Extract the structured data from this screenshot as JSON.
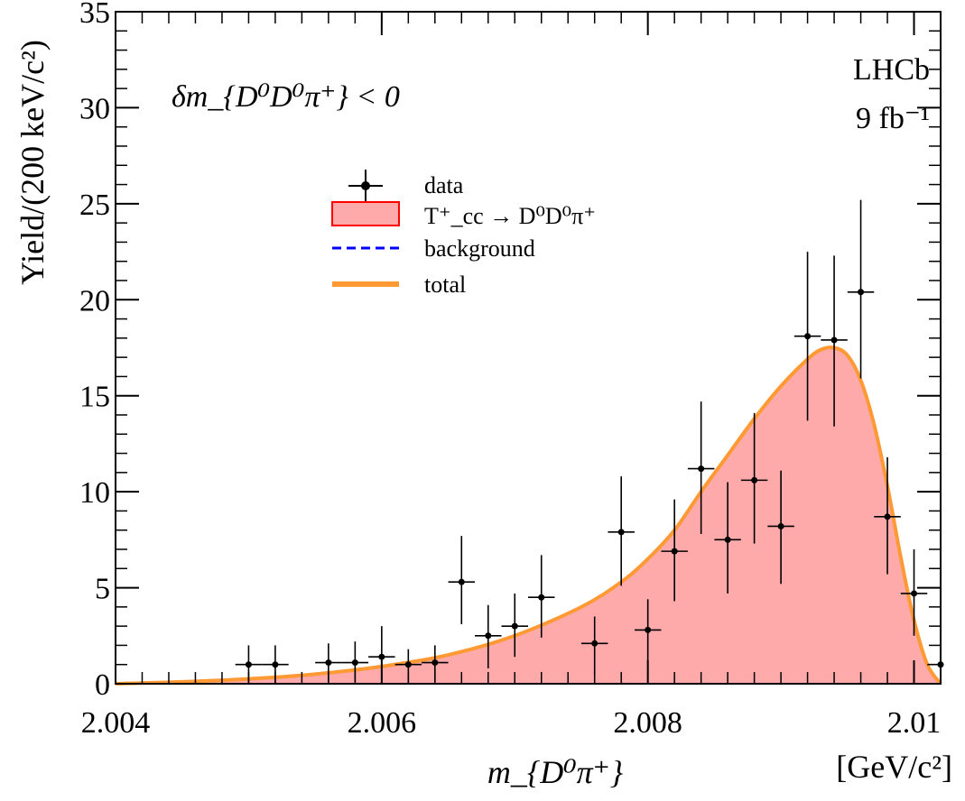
{
  "chart_data": {
    "type": "scatter",
    "experiment": "LHCb",
    "luminosity": "9 fb⁻¹",
    "selection": "δm_{D⁰D⁰π⁺} < 0",
    "xlabel": "m_{D⁰π⁺}",
    "xunit": "[GeV/c²]",
    "ylabel": "Yield/(200 keV/c²)",
    "xlim": [
      2.004,
      2.0102
    ],
    "ylim": [
      0,
      35
    ],
    "xticks": [
      {
        "value": 2.004,
        "label": "2.004"
      },
      {
        "value": 2.006,
        "label": "2.006"
      },
      {
        "value": 2.008,
        "label": "2.008"
      },
      {
        "value": 2.01,
        "label": "2.01"
      }
    ],
    "yticks": [
      {
        "value": 0,
        "label": "0"
      },
      {
        "value": 5,
        "label": "5"
      },
      {
        "value": 10,
        "label": "10"
      },
      {
        "value": 15,
        "label": "15"
      },
      {
        "value": 20,
        "label": "20"
      },
      {
        "value": 25,
        "label": "25"
      },
      {
        "value": 30,
        "label": "30"
      },
      {
        "value": 35,
        "label": "35"
      }
    ],
    "bin_half_width": 0.0001,
    "legend": [
      {
        "key": "data",
        "label": "data"
      },
      {
        "key": "signal",
        "label": "T⁺_cc → D⁰D⁰π⁺"
      },
      {
        "key": "background",
        "label": "background"
      },
      {
        "key": "total",
        "label": "total"
      }
    ],
    "colors": {
      "signal_fill": "#ffaaaa",
      "signal_edge": "#ff0000",
      "background": "#0000ff",
      "total": "#ff9933",
      "data": "#000000"
    },
    "data": [
      {
        "x": 2.005,
        "y": 1.0,
        "yerr_low": 1.0,
        "yerr_high": 1.0
      },
      {
        "x": 2.0052,
        "y": 1.0,
        "yerr_low": 1.0,
        "yerr_high": 1.0
      },
      {
        "x": 2.0056,
        "y": 1.1,
        "yerr_low": 1.0,
        "yerr_high": 1.0
      },
      {
        "x": 2.0058,
        "y": 1.1,
        "yerr_low": 1.0,
        "yerr_high": 1.1
      },
      {
        "x": 2.006,
        "y": 1.4,
        "yerr_low": 1.2,
        "yerr_high": 1.6
      },
      {
        "x": 2.0062,
        "y": 1.0,
        "yerr_low": 1.0,
        "yerr_high": 0.8
      },
      {
        "x": 2.0064,
        "y": 1.1,
        "yerr_low": 1.0,
        "yerr_high": 0.9
      },
      {
        "x": 2.0066,
        "y": 5.3,
        "yerr_low": 2.2,
        "yerr_high": 2.4
      },
      {
        "x": 2.0068,
        "y": 2.5,
        "yerr_low": 1.7,
        "yerr_high": 1.6
      },
      {
        "x": 2.007,
        "y": 3.0,
        "yerr_low": 1.6,
        "yerr_high": 1.7
      },
      {
        "x": 2.0072,
        "y": 4.5,
        "yerr_low": 2.1,
        "yerr_high": 2.2
      },
      {
        "x": 2.0076,
        "y": 2.1,
        "yerr_low": 1.6,
        "yerr_high": 1.4
      },
      {
        "x": 2.0078,
        "y": 7.9,
        "yerr_low": 2.8,
        "yerr_high": 2.9
      },
      {
        "x": 2.008,
        "y": 2.8,
        "yerr_low": 1.7,
        "yerr_high": 1.6
      },
      {
        "x": 2.0082,
        "y": 6.9,
        "yerr_low": 2.6,
        "yerr_high": 2.7
      },
      {
        "x": 2.0084,
        "y": 11.2,
        "yerr_low": 3.4,
        "yerr_high": 3.5
      },
      {
        "x": 2.0086,
        "y": 7.5,
        "yerr_low": 2.8,
        "yerr_high": 3.0
      },
      {
        "x": 2.0088,
        "y": 10.6,
        "yerr_low": 3.3,
        "yerr_high": 3.5
      },
      {
        "x": 2.009,
        "y": 8.2,
        "yerr_low": 3.0,
        "yerr_high": 2.9
      },
      {
        "x": 2.0092,
        "y": 18.1,
        "yerr_low": 4.4,
        "yerr_high": 4.4
      },
      {
        "x": 2.0094,
        "y": 17.9,
        "yerr_low": 4.5,
        "yerr_high": 4.4
      },
      {
        "x": 2.0096,
        "y": 20.4,
        "yerr_low": 4.5,
        "yerr_high": 4.8
      },
      {
        "x": 2.0098,
        "y": 8.7,
        "yerr_low": 3.0,
        "yerr_high": 3.1
      },
      {
        "x": 2.01,
        "y": 4.7,
        "yerr_low": 2.2,
        "yerr_high": 2.3
      },
      {
        "x": 2.0102,
        "y": 1.0,
        "yerr_low": 1.0,
        "yerr_high": 1.0
      }
    ],
    "total_curve": {
      "x": [
        2.004,
        2.0045,
        2.005,
        2.0055,
        2.006,
        2.0065,
        2.007,
        2.0075,
        2.0078,
        2.008,
        2.0082,
        2.0084,
        2.0086,
        2.0088,
        2.009,
        2.0092,
        2.0093,
        2.0094,
        2.0095,
        2.0096,
        2.0097,
        2.0098,
        2.0099,
        2.01,
        2.0101,
        2.0102
      ],
      "y": [
        0.0,
        0.1,
        0.25,
        0.5,
        0.9,
        1.5,
        2.5,
        4.0,
        5.3,
        6.5,
        8.0,
        10.0,
        11.9,
        13.8,
        15.5,
        16.9,
        17.4,
        17.5,
        17.1,
        15.8,
        13.5,
        10.3,
        6.6,
        3.3,
        1.0,
        0.0
      ]
    }
  }
}
